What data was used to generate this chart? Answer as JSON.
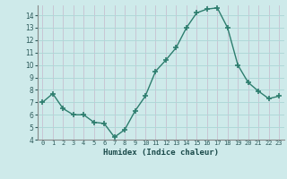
{
  "x": [
    0,
    1,
    2,
    3,
    4,
    5,
    6,
    7,
    8,
    9,
    10,
    11,
    12,
    13,
    14,
    15,
    16,
    17,
    18,
    19,
    20,
    21,
    22,
    23
  ],
  "y": [
    7.0,
    7.7,
    6.5,
    6.0,
    6.0,
    5.4,
    5.3,
    4.2,
    4.8,
    6.3,
    7.5,
    9.5,
    10.4,
    11.4,
    13.0,
    14.2,
    14.5,
    14.6,
    13.0,
    10.0,
    8.6,
    7.9,
    7.3,
    7.5
  ],
  "line_color": "#2d7d6e",
  "marker": "+",
  "markersize": 4,
  "markeredgewidth": 1.2,
  "background_color": "#ceeaea",
  "grid_color": "#b0d8d8",
  "xlabel": "Humidex (Indice chaleur)",
  "ylim": [
    4,
    14.8
  ],
  "xlim": [
    -0.5,
    23.5
  ],
  "yticks": [
    4,
    5,
    6,
    7,
    8,
    9,
    10,
    11,
    12,
    13,
    14
  ],
  "xtick_labels": [
    "0",
    "1",
    "2",
    "3",
    "4",
    "5",
    "6",
    "7",
    "8",
    "9",
    "10",
    "11",
    "12",
    "13",
    "14",
    "15",
    "16",
    "17",
    "18",
    "19",
    "20",
    "21",
    "22",
    "23"
  ]
}
